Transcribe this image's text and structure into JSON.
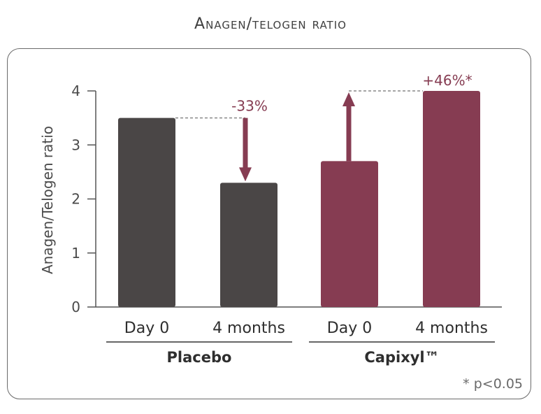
{
  "chart_data": {
    "type": "bar",
    "title": "Anagen/telogen ratio",
    "ylabel": "Anagen/Telogen ratio",
    "xlabel": "",
    "ylim": [
      0,
      4
    ],
    "yticks": [
      0,
      1,
      2,
      3,
      4
    ],
    "grid": false,
    "categories": [
      "Day 0",
      "4 months",
      "Day 0",
      "4 months"
    ],
    "groups": [
      {
        "label": "Placebo",
        "categories": [
          0,
          1
        ]
      },
      {
        "label": "Capixyl™",
        "categories": [
          2,
          3
        ]
      }
    ],
    "values": [
      3.5,
      2.3,
      2.7,
      4.0
    ],
    "colors": [
      "#4a4646",
      "#4a4646",
      "#863c52",
      "#863c52"
    ],
    "annotations": [
      {
        "text": "-33%",
        "from": 0,
        "to": 1,
        "direction": "down",
        "color": "#863c52"
      },
      {
        "text": "+46%*",
        "from": 2,
        "to": 3,
        "direction": "up",
        "color": "#863c52"
      }
    ],
    "footnote": "* p<0.05"
  }
}
